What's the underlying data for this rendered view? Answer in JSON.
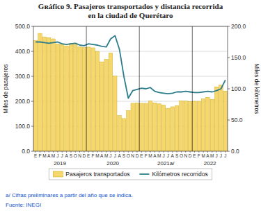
{
  "chart_data": {
    "type": "bar",
    "title": "Gʀáfico 9. Pasajeros transportados y distancia recorrida",
    "subtitle": "en la ciudad de Querétaro",
    "categories": [
      "E",
      "F",
      "M",
      "A",
      "M",
      "J",
      "J",
      "A",
      "S",
      "O",
      "N",
      "D",
      "E",
      "F",
      "M",
      "A",
      "M",
      "J",
      "J",
      "A",
      "S",
      "O",
      "N",
      "D",
      "E",
      "F",
      "M",
      "A",
      "M",
      "J",
      "J",
      "A",
      "S",
      "O",
      "N",
      "D",
      "E",
      "F",
      "M",
      "A",
      "M",
      "J",
      "J",
      "J"
    ],
    "groups": [
      {
        "label": "2019",
        "start": 0
      },
      {
        "label": "2020",
        "start": 12
      },
      {
        "label": "2021a/",
        "start": 24
      },
      {
        "label": "2022",
        "start": 36
      }
    ],
    "series": [
      {
        "name": "Pasajeros transportados",
        "type": "bar",
        "color": "#F5D76E",
        "values": [
          443,
          472,
          458,
          455,
          450,
          430,
          428,
          422,
          432,
          433,
          418,
          415,
          417,
          414,
          400,
          358,
          368,
          393,
          301,
          143,
          131,
          163,
          192,
          193,
          192,
          192,
          202,
          194,
          190,
          185,
          172,
          178,
          183,
          202,
          201,
          199,
          200,
          200,
          210,
          216,
          208,
          258,
          265,
          241
        ]
      },
      {
        "name": "Kilómetros recorridos",
        "type": "line",
        "color": "#2E7D8C",
        "axis": "y2",
        "values": [
          175,
          175,
          174,
          173,
          174,
          175,
          172,
          171,
          172,
          173,
          170,
          169,
          172,
          171,
          170,
          168,
          167,
          180,
          185,
          163,
          120,
          85,
          97,
          99,
          101,
          100,
          102,
          96,
          94,
          93,
          92,
          93,
          95,
          95,
          96,
          95,
          94,
          94,
          95,
          96,
          95,
          97,
          100,
          114
        ]
      }
    ],
    "ylabel": "Miles de pasajeros",
    "y2label": "Miles de kilómetros",
    "ylim": [
      0,
      500
    ],
    "yticks": [
      {
        "value": 0,
        "label": "0.0"
      },
      {
        "value": 100,
        "label": "100.0"
      },
      {
        "value": 200,
        "label": "200.0"
      },
      {
        "value": 300,
        "label": "300.0"
      },
      {
        "value": 400,
        "label": "400.0"
      },
      {
        "value": 500,
        "label": "500.0"
      }
    ],
    "y2lim": [
      0,
      200
    ],
    "y2ticks": [
      {
        "value": 0,
        "label": "0.0"
      },
      {
        "value": 50,
        "label": "50.0"
      },
      {
        "value": 100,
        "label": "100.0"
      },
      {
        "value": 150,
        "label": "150.0"
      },
      {
        "value": 200,
        "label": "200.0"
      }
    ],
    "grid": true,
    "legend": "bottom",
    "footnote": "a/ Cifras preliminares a partir del año que se indica.",
    "source": "Fuente: INEGI"
  }
}
